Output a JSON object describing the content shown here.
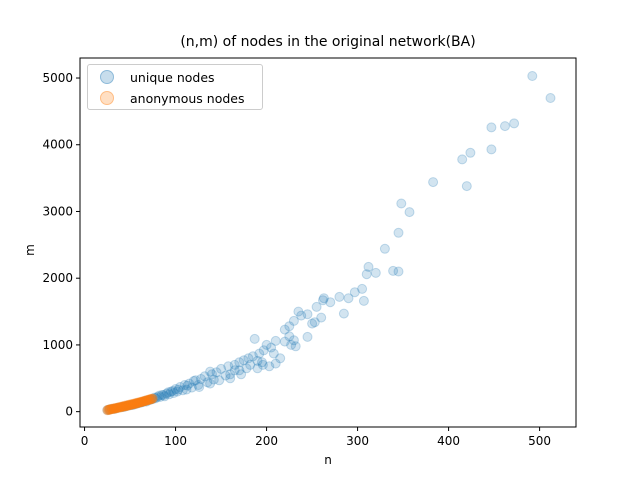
{
  "chart_data": {
    "type": "scatter",
    "title": "(n,m) of nodes in the original network(BA)",
    "xlabel": "n",
    "ylabel": "m",
    "xlim": [
      -5,
      540
    ],
    "ylim": [
      -230,
      5300
    ],
    "xticks": [
      0,
      100,
      200,
      300,
      400,
      500
    ],
    "yticks": [
      0,
      1000,
      2000,
      3000,
      4000,
      5000
    ],
    "grid": false,
    "legend_position": "top-left",
    "series": [
      {
        "name": "unique nodes",
        "color": "#1f77b4",
        "opacity": 0.2,
        "points": [
          [
            492,
            5030
          ],
          [
            512,
            4700
          ],
          [
            472,
            4320
          ],
          [
            462,
            4280
          ],
          [
            447,
            4260
          ],
          [
            447,
            3930
          ],
          [
            424,
            3880
          ],
          [
            415,
            3780
          ],
          [
            420,
            3380
          ],
          [
            383,
            3440
          ],
          [
            348,
            3120
          ],
          [
            357,
            2990
          ],
          [
            345,
            2680
          ],
          [
            330,
            2440
          ],
          [
            312,
            2170
          ],
          [
            310,
            2060
          ],
          [
            320,
            2080
          ],
          [
            339,
            2110
          ],
          [
            345,
            2100
          ],
          [
            297,
            1790
          ],
          [
            305,
            1840
          ],
          [
            280,
            1720
          ],
          [
            263,
            1700
          ],
          [
            262,
            1670
          ],
          [
            270,
            1640
          ],
          [
            290,
            1700
          ],
          [
            307,
            1660
          ],
          [
            285,
            1470
          ],
          [
            255,
            1570
          ],
          [
            245,
            1460
          ],
          [
            260,
            1410
          ],
          [
            235,
            1500
          ],
          [
            225,
            1280
          ],
          [
            220,
            1230
          ],
          [
            238,
            1440
          ],
          [
            230,
            1360
          ],
          [
            250,
            1320
          ],
          [
            253,
            1340
          ],
          [
            245,
            1120
          ],
          [
            230,
            1070
          ],
          [
            220,
            1050
          ],
          [
            227,
            1000
          ],
          [
            232,
            980
          ],
          [
            225,
            1130
          ],
          [
            210,
            1060
          ],
          [
            200,
            1000
          ],
          [
            187,
            1090
          ],
          [
            205,
            960
          ],
          [
            197,
            920
          ],
          [
            192,
            870
          ],
          [
            185,
            830
          ],
          [
            180,
            800
          ],
          [
            175,
            770
          ],
          [
            170,
            740
          ],
          [
            165,
            700
          ],
          [
            158,
            680
          ],
          [
            150,
            640
          ],
          [
            145,
            590
          ],
          [
            140,
            560
          ],
          [
            132,
            530
          ],
          [
            128,
            490
          ],
          [
            120,
            460
          ],
          [
            115,
            420
          ],
          [
            110,
            400
          ],
          [
            105,
            370
          ],
          [
            100,
            340
          ],
          [
            95,
            300
          ],
          [
            90,
            270
          ],
          [
            85,
            250
          ],
          [
            80,
            220
          ],
          [
            75,
            190
          ],
          [
            70,
            170
          ],
          [
            65,
            150
          ],
          [
            60,
            130
          ],
          [
            55,
            110
          ],
          [
            50,
            95
          ],
          [
            45,
            80
          ],
          [
            40,
            65
          ],
          [
            35,
            50
          ],
          [
            30,
            40
          ],
          [
            27,
            30
          ],
          [
            25,
            25
          ],
          [
            160,
            560
          ],
          [
            170,
            620
          ],
          [
            182,
            700
          ],
          [
            190,
            760
          ],
          [
            196,
            700
          ],
          [
            178,
            650
          ],
          [
            165,
            620
          ],
          [
            155,
            540
          ],
          [
            142,
            480
          ],
          [
            135,
            440
          ],
          [
            125,
            400
          ],
          [
            118,
            360
          ],
          [
            108,
            320
          ],
          [
            98,
            280
          ],
          [
            88,
            230
          ],
          [
            78,
            200
          ],
          [
            68,
            150
          ],
          [
            58,
            120
          ],
          [
            48,
            90
          ],
          [
            210,
            720
          ],
          [
            203,
            680
          ],
          [
            195,
            740
          ],
          [
            215,
            800
          ],
          [
            208,
            870
          ],
          [
            190,
            650
          ],
          [
            172,
            560
          ],
          [
            160,
            500
          ],
          [
            148,
            470
          ],
          [
            138,
            420
          ],
          [
            126,
            370
          ],
          [
            112,
            330
          ],
          [
            102,
            300
          ],
          [
            93,
            260
          ],
          [
            83,
            220
          ],
          [
            73,
            180
          ],
          [
            63,
            140
          ],
          [
            53,
            100
          ],
          [
            43,
            70
          ],
          [
            33,
            45
          ],
          [
            138,
            600
          ],
          [
            122,
            470
          ],
          [
            113,
            390
          ],
          [
            103,
            330
          ],
          [
            97,
            310
          ],
          [
            92,
            290
          ],
          [
            87,
            250
          ],
          [
            82,
            240
          ],
          [
            77,
            210
          ],
          [
            72,
            180
          ],
          [
            67,
            165
          ],
          [
            62,
            140
          ],
          [
            57,
            125
          ],
          [
            52,
            105
          ],
          [
            47,
            90
          ],
          [
            42,
            75
          ],
          [
            37,
            60
          ],
          [
            32,
            45
          ],
          [
            28,
            35
          ]
        ]
      },
      {
        "name": "anonymous nodes",
        "color": "#ff7f0e",
        "opacity": 0.2,
        "points": [
          [
            25,
            20
          ],
          [
            26,
            25
          ],
          [
            27,
            28
          ],
          [
            28,
            30
          ],
          [
            29,
            35
          ],
          [
            30,
            38
          ],
          [
            31,
            40
          ],
          [
            32,
            42
          ],
          [
            33,
            45
          ],
          [
            34,
            48
          ],
          [
            35,
            50
          ],
          [
            36,
            55
          ],
          [
            37,
            58
          ],
          [
            38,
            60
          ],
          [
            39,
            62
          ],
          [
            40,
            65
          ],
          [
            41,
            70
          ],
          [
            42,
            72
          ],
          [
            43,
            75
          ],
          [
            44,
            78
          ],
          [
            45,
            80
          ],
          [
            46,
            85
          ],
          [
            47,
            88
          ],
          [
            48,
            90
          ],
          [
            49,
            95
          ],
          [
            50,
            98
          ],
          [
            51,
            100
          ],
          [
            52,
            105
          ],
          [
            53,
            108
          ],
          [
            54,
            110
          ],
          [
            55,
            115
          ],
          [
            56,
            118
          ],
          [
            57,
            120
          ],
          [
            58,
            125
          ],
          [
            59,
            130
          ],
          [
            60,
            135
          ],
          [
            61,
            138
          ],
          [
            62,
            140
          ],
          [
            63,
            145
          ],
          [
            64,
            150
          ],
          [
            65,
            152
          ],
          [
            66,
            155
          ],
          [
            67,
            160
          ],
          [
            68,
            165
          ],
          [
            69,
            170
          ],
          [
            70,
            175
          ],
          [
            71,
            178
          ],
          [
            72,
            180
          ],
          [
            73,
            185
          ],
          [
            74,
            190
          ],
          [
            75,
            195
          ],
          [
            26,
            30
          ],
          [
            28,
            38
          ],
          [
            30,
            45
          ],
          [
            32,
            50
          ],
          [
            34,
            55
          ],
          [
            36,
            60
          ],
          [
            38,
            68
          ],
          [
            40,
            75
          ],
          [
            42,
            80
          ],
          [
            44,
            88
          ],
          [
            46,
            95
          ],
          [
            48,
            100
          ],
          [
            50,
            108
          ],
          [
            52,
            115
          ],
          [
            54,
            120
          ],
          [
            56,
            128
          ],
          [
            58,
            135
          ],
          [
            60,
            140
          ],
          [
            62,
            148
          ],
          [
            64,
            155
          ],
          [
            66,
            162
          ],
          [
            68,
            170
          ],
          [
            70,
            180
          ],
          [
            72,
            188
          ],
          [
            74,
            195
          ]
        ]
      }
    ]
  }
}
